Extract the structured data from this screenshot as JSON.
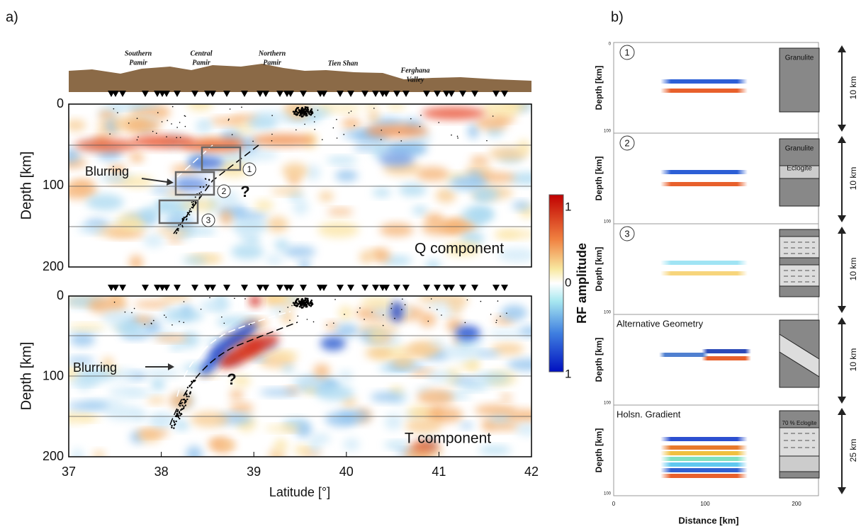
{
  "panel_a": {
    "label": "a)",
    "regions": [
      [
        "Southern",
        "Pamir"
      ],
      [
        "Central",
        "Pamir"
      ],
      [
        "Northern",
        "Pamir"
      ],
      [
        "Tien Shan"
      ],
      [
        "Ferghana",
        "Valley"
      ]
    ],
    "y_label": "Depth [km]",
    "y_ticks": [
      "0",
      "100",
      "200"
    ],
    "x_ticks": [
      "37",
      "38",
      "39",
      "40",
      "41",
      "42"
    ],
    "x_label": "Latitude [°]",
    "top": {
      "annotation": "Blurring",
      "boxes": [
        "1",
        "2",
        "3"
      ],
      "question": "?",
      "component": "Q component"
    },
    "bottom": {
      "annotation": "Blurring",
      "question": "?",
      "component": "T component"
    }
  },
  "colorbar": {
    "label": "RF amplitude",
    "ticks": [
      "1",
      "0",
      "1"
    ]
  },
  "panel_b": {
    "label": "b)",
    "y_label": "Depth [km]",
    "x_label": "Distance [km]",
    "x_ticks": [
      "0",
      "100",
      "200"
    ],
    "panels": [
      {
        "title": "1",
        "circled": true,
        "box_labels": [
          "Granulite"
        ],
        "thickness": "10 km",
        "y_ticks": [
          "0",
          "100"
        ]
      },
      {
        "title": "2",
        "circled": true,
        "box_labels": [
          "Granulite",
          "Eclogite"
        ],
        "thickness": "10 km",
        "y_ticks": [
          "100"
        ]
      },
      {
        "title": "3",
        "circled": true,
        "box_labels": [],
        "thickness": "10 km",
        "y_ticks": [
          "100"
        ]
      },
      {
        "title": "Alternative Geometry",
        "circled": false,
        "box_labels": [],
        "thickness": "10 km",
        "y_ticks": [
          "100"
        ]
      },
      {
        "title": "Holsn. Gradient",
        "circled": false,
        "box_labels": [
          "70 % Eclogite"
        ],
        "thickness": "25 km",
        "y_ticks": [
          "100"
        ]
      }
    ]
  }
}
